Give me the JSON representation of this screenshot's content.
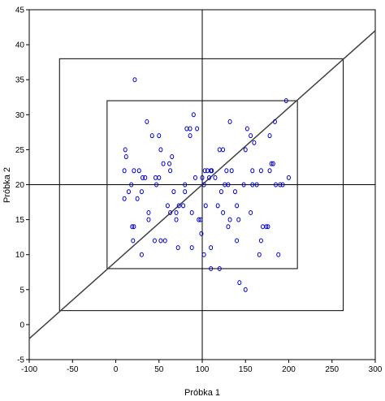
{
  "chart_data": {
    "type": "scatter",
    "xlabel": "Próbka 1",
    "ylabel": "Próbka 2",
    "xlim": [
      -100,
      300
    ],
    "ylim": [
      -5,
      45
    ],
    "x_ticks": [
      -100,
      -50,
      0,
      50,
      100,
      150,
      200,
      250,
      300
    ],
    "y_ticks": [
      -5,
      0,
      5,
      10,
      15,
      20,
      25,
      30,
      35,
      40,
      45
    ],
    "grid": false,
    "marker": "open-circle",
    "marker_color": "#0000cc",
    "line_color": "#404040",
    "mean_lines": {
      "x": 100,
      "y": 20
    },
    "inner_box": {
      "x": [
        -10,
        210
      ],
      "y": [
        8,
        32
      ]
    },
    "outer_box": {
      "x": [
        -65,
        263
      ],
      "y": [
        2,
        38
      ]
    },
    "regression_line": {
      "x": [
        -100,
        300
      ],
      "y": [
        -2,
        42
      ]
    },
    "points": [
      [
        22,
        35
      ],
      [
        11,
        25
      ],
      [
        12,
        24
      ],
      [
        10,
        22
      ],
      [
        21,
        22
      ],
      [
        18,
        20
      ],
      [
        10,
        18
      ],
      [
        15,
        19
      ],
      [
        25,
        18
      ],
      [
        30,
        19
      ],
      [
        31,
        21
      ],
      [
        34,
        21
      ],
      [
        27,
        22
      ],
      [
        36,
        29
      ],
      [
        42,
        27
      ],
      [
        50,
        27
      ],
      [
        52,
        25
      ],
      [
        55,
        23
      ],
      [
        63,
        22
      ],
      [
        62,
        23
      ],
      [
        65,
        24
      ],
      [
        50,
        21
      ],
      [
        46,
        21
      ],
      [
        47,
        20
      ],
      [
        38,
        16
      ],
      [
        38,
        15
      ],
      [
        30,
        10
      ],
      [
        20,
        12
      ],
      [
        19,
        14
      ],
      [
        21,
        14
      ],
      [
        45,
        12
      ],
      [
        52,
        12
      ],
      [
        60,
        17
      ],
      [
        63,
        16
      ],
      [
        67,
        19
      ],
      [
        70,
        16
      ],
      [
        70,
        15
      ],
      [
        73,
        17
      ],
      [
        78,
        17
      ],
      [
        72,
        11
      ],
      [
        57,
        12
      ],
      [
        80,
        20
      ],
      [
        80,
        19
      ],
      [
        82,
        28
      ],
      [
        86,
        28
      ],
      [
        90,
        30
      ],
      [
        94,
        28
      ],
      [
        86,
        27
      ],
      [
        92,
        21
      ],
      [
        88,
        16
      ],
      [
        96,
        15
      ],
      [
        98,
        15
      ],
      [
        99,
        13
      ],
      [
        88,
        11
      ],
      [
        100,
        21
      ],
      [
        103,
        22
      ],
      [
        106,
        22
      ],
      [
        110,
        22
      ],
      [
        111,
        22
      ],
      [
        115,
        21
      ],
      [
        108,
        21
      ],
      [
        102,
        20
      ],
      [
        104,
        17
      ],
      [
        102,
        10
      ],
      [
        110,
        11
      ],
      [
        110,
        8
      ],
      [
        120,
        8
      ],
      [
        120,
        25
      ],
      [
        124,
        25
      ],
      [
        132,
        29
      ],
      [
        128,
        22
      ],
      [
        134,
        22
      ],
      [
        130,
        20
      ],
      [
        126,
        20
      ],
      [
        122,
        19
      ],
      [
        118,
        17
      ],
      [
        124,
        16
      ],
      [
        132,
        15
      ],
      [
        130,
        14
      ],
      [
        138,
        19
      ],
      [
        140,
        17
      ],
      [
        142,
        15
      ],
      [
        140,
        12
      ],
      [
        143,
        6
      ],
      [
        150,
        5
      ],
      [
        148,
        20
      ],
      [
        150,
        25
      ],
      [
        152,
        28
      ],
      [
        156,
        27
      ],
      [
        160,
        26
      ],
      [
        158,
        22
      ],
      [
        163,
        20
      ],
      [
        158,
        20
      ],
      [
        156,
        16
      ],
      [
        168,
        22
      ],
      [
        170,
        14
      ],
      [
        168,
        12
      ],
      [
        174,
        14
      ],
      [
        176,
        14
      ],
      [
        166,
        10
      ],
      [
        178,
        22
      ],
      [
        180,
        23
      ],
      [
        182,
        23
      ],
      [
        178,
        27
      ],
      [
        184,
        29
      ],
      [
        188,
        10
      ],
      [
        190,
        20
      ],
      [
        193,
        20
      ],
      [
        197,
        32
      ],
      [
        200,
        21
      ],
      [
        185,
        20
      ]
    ]
  }
}
